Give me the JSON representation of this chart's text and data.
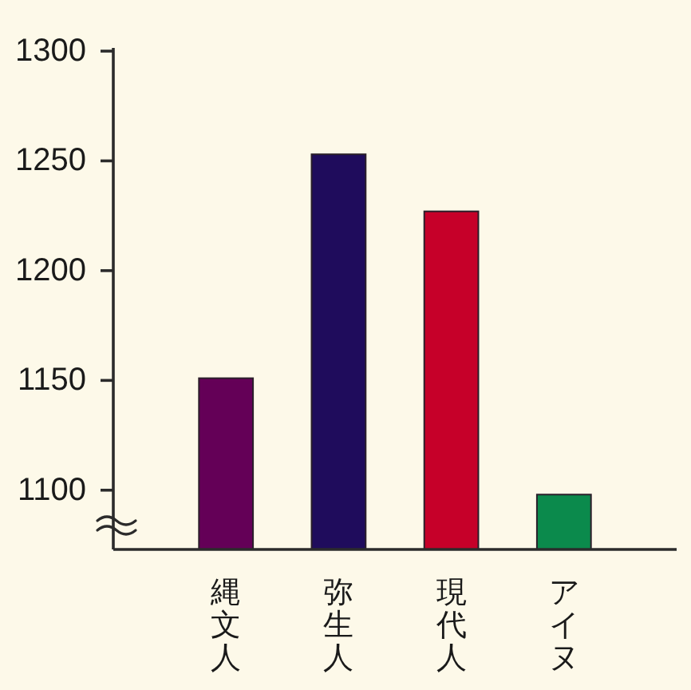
{
  "chart_data": {
    "type": "bar",
    "categories": [
      "縄文人",
      "弥生人",
      "現代人",
      "アイヌ"
    ],
    "values": [
      1151,
      1253,
      1227,
      1098
    ],
    "colors": [
      "#640057",
      "#1f0c5c",
      "#c60029",
      "#0b8a4c"
    ],
    "ylim": [
      1073,
      1300
    ],
    "yticks": [
      1100,
      1150,
      1200,
      1250,
      1300
    ]
  }
}
